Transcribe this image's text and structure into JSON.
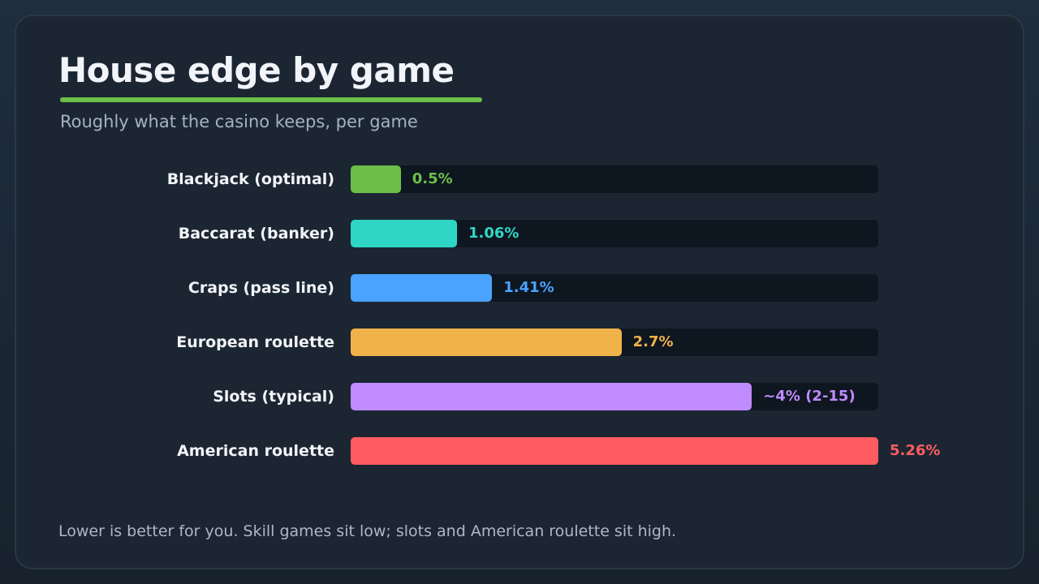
{
  "header": {
    "title": "House edge by game",
    "subtitle": "Roughly what the casino keeps, per game"
  },
  "footnote": "Lower is better for you. Skill games sit low; slots and American roulette sit high.",
  "colors": {
    "accent": "#6cc04a",
    "track": "#0e1620"
  },
  "chart_data": {
    "type": "bar",
    "orientation": "horizontal",
    "title": "House edge by game",
    "subtitle": "Roughly what the casino keeps, per game",
    "unit": "%",
    "xlim": [
      0,
      5.26
    ],
    "grid": false,
    "categories": [
      "Blackjack (optimal)",
      "Baccarat (banker)",
      "Craps (pass line)",
      "European roulette",
      "Slots (typical)",
      "American roulette"
    ],
    "values": [
      0.5,
      1.06,
      1.41,
      2.7,
      4,
      5.26
    ],
    "data_labels": [
      "0.5%",
      "1.06%",
      "1.41%",
      "2.7%",
      "~4% (2-15)",
      "5.26%"
    ],
    "bar_colors": [
      "#6cc04a",
      "#2fd6c6",
      "#4aa3ff",
      "#f2b24a",
      "#bf8bff",
      "#ff5c62"
    ]
  }
}
